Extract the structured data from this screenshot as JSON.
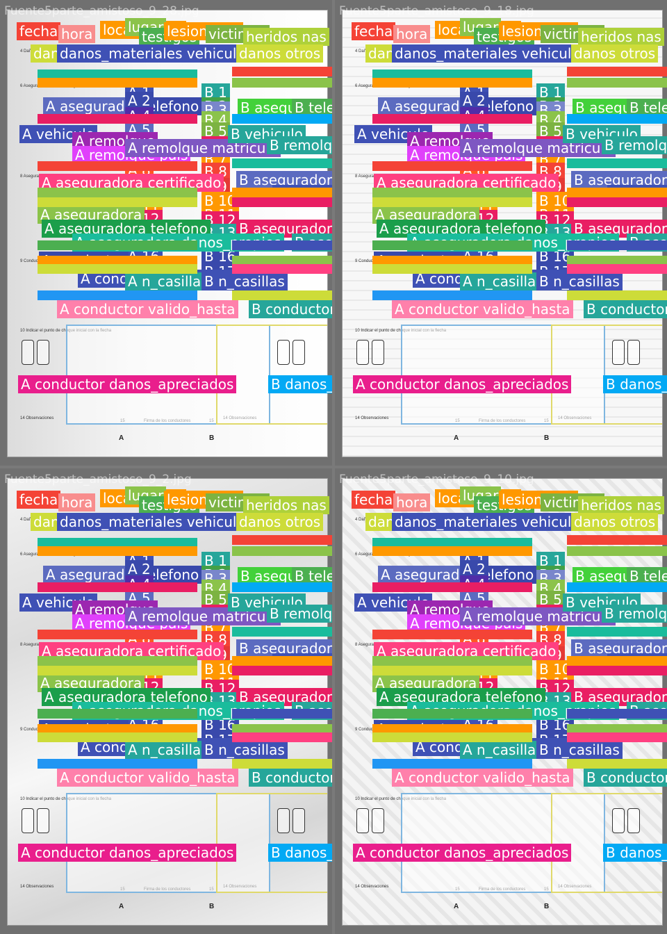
{
  "images": [
    "Fuente5parte_amistoso_9_28.jpg",
    "Fuente5parte_amistoso_9_18.jpg",
    "Fuente5parte_amistoso_9_2.jpg",
    "Fuente5parte_amistoso_9_10.jpg"
  ],
  "form_text": {
    "s4": "4 Daños materiales",
    "s6": "6 Asegurado/Tomador del seguro",
    "s8": "8 Asegurador",
    "s9": "9 Conductor",
    "s10": "10 Indicar el punto de choque inicial con la flecha",
    "s14": "14 Observaciones",
    "s15": "15",
    "firma": "Firma de los conductores",
    "side_a": "A",
    "side_b": "B"
  },
  "palette": [
    "#f44336",
    "#ff7043",
    "#ff9800",
    "#8bc34a",
    "#4caf50",
    "#2ecc71",
    "#1abc9c",
    "#26a69a",
    "#00bcd4",
    "#03a9f4",
    "#2196f3",
    "#3f51b5",
    "#5c6bc0",
    "#673ab7",
    "#9c27b0",
    "#e91e63",
    "#ff4081",
    "#ffc107",
    "#cddc39",
    "#009688"
  ],
  "labels": [
    {
      "t": "fecha",
      "c": "#f44336"
    },
    {
      "t": "hora",
      "c": "#f88d8d"
    },
    {
      "t": "localizacion",
      "c": "#ff9800"
    },
    {
      "t": "lugar",
      "c": "#8bc34a"
    },
    {
      "t": "testigos",
      "c": "#4caf50"
    },
    {
      "t": "lesion pais",
      "c": "#ff9800"
    },
    {
      "t": "victimas",
      "c": "#7cb342"
    },
    {
      "t": "heridos nas",
      "c": "#aed13a"
    },
    {
      "t": "danos",
      "c": "#cddc39"
    },
    {
      "t": "danos_materiales vehiculos",
      "c": "#3f51b5"
    },
    {
      "t": "danos otros",
      "c": "#cddc39"
    },
    {
      "t": "A asegurado",
      "c": "#5c6bc0"
    },
    {
      "t": "A telefono",
      "c": "#3949ab"
    },
    {
      "t": "B asegurado",
      "c": "#43d13a"
    },
    {
      "t": "B telefono",
      "c": "#4caf50"
    },
    {
      "t": "B 1",
      "c": "#26a69a"
    },
    {
      "t": "B 2",
      "c": "#43a047"
    },
    {
      "t": "B 3",
      "c": "#7986cb"
    },
    {
      "t": "B 4",
      "c": "#8bc34a"
    },
    {
      "t": "B 5",
      "c": "#7cb342"
    },
    {
      "t": "B 6",
      "c": "#e91e63"
    },
    {
      "t": "B 7",
      "c": "#ff9800"
    },
    {
      "t": "B 8",
      "c": "#f44336"
    },
    {
      "t": "B 9",
      "c": "#e53935"
    },
    {
      "t": "B 10",
      "c": "#ff9800"
    },
    {
      "t": "B 11",
      "c": "#ff9800"
    },
    {
      "t": "B 12",
      "c": "#e91e63"
    },
    {
      "t": "B 13",
      "c": "#26a69a"
    },
    {
      "t": "B 16",
      "c": "#3949ab"
    },
    {
      "t": "B 17",
      "c": "#3949ab"
    },
    {
      "t": "A 1",
      "c": "#3f51b5"
    },
    {
      "t": "A 2",
      "c": "#3949ab"
    },
    {
      "t": "A 4",
      "c": "#512da8"
    },
    {
      "t": "A 5",
      "c": "#5c6bc0"
    },
    {
      "t": "A 6",
      "c": "#e91e63"
    },
    {
      "t": "A 7",
      "c": "#ff9800"
    },
    {
      "t": "A 8",
      "c": "#ff5722"
    },
    {
      "t": "A 9",
      "c": "#f88d8d"
    },
    {
      "t": "A 11",
      "c": "#ff9800"
    },
    {
      "t": "A 12",
      "c": "#e91e63"
    },
    {
      "t": "A 14",
      "c": "#26a69a"
    },
    {
      "t": "A 16",
      "c": "#3f51b5"
    },
    {
      "t": "A 17",
      "c": "#3949ab"
    },
    {
      "t": "A vehiculo",
      "c": "#3f51b5"
    },
    {
      "t": "A remolque",
      "c": "#9c27b0"
    },
    {
      "t": "A remolque pais",
      "c": "#e040fb"
    },
    {
      "t": "A remolque matricula",
      "c": "#7e57c2"
    },
    {
      "t": "B vehiculo",
      "c": "#26a69a"
    },
    {
      "t": "B remolque",
      "c": "#26a69a"
    },
    {
      "t": "A aseguradora certificado",
      "c": "#ff4081"
    },
    {
      "t": "B aseguradora",
      "c": "#5c6bc0"
    },
    {
      "t": "B aseguradora certificado",
      "c": "#3f51b5"
    },
    {
      "t": "A aseguradora",
      "c": "#8bc34a"
    },
    {
      "t": "A aseguradora telefono",
      "c": "#1b9e4b"
    },
    {
      "t": "B aseguradora telefono",
      "c": "#e91e63"
    },
    {
      "t": "A aseguradora danos_propios",
      "c": "#1abc9c"
    },
    {
      "t": "B aseguradora danos_propios",
      "c": "#26a69a"
    },
    {
      "t": "A conductor",
      "c": "#3949ab"
    },
    {
      "t": "A conductor apellidos",
      "c": "#3f51b5"
    },
    {
      "t": "A n_casillas",
      "c": "#26a69a"
    },
    {
      "t": "B n_casillas",
      "c": "#3f51b5"
    },
    {
      "t": "A conductor valido_hasta",
      "c": "#ff80ab"
    },
    {
      "t": "B conductor valido_hasta",
      "c": "#26a69a"
    },
    {
      "t": "A conductor danos_apreciados",
      "c": "#e91e8c"
    },
    {
      "t": "B danos_apreciados",
      "c": "#03a9f4"
    }
  ]
}
